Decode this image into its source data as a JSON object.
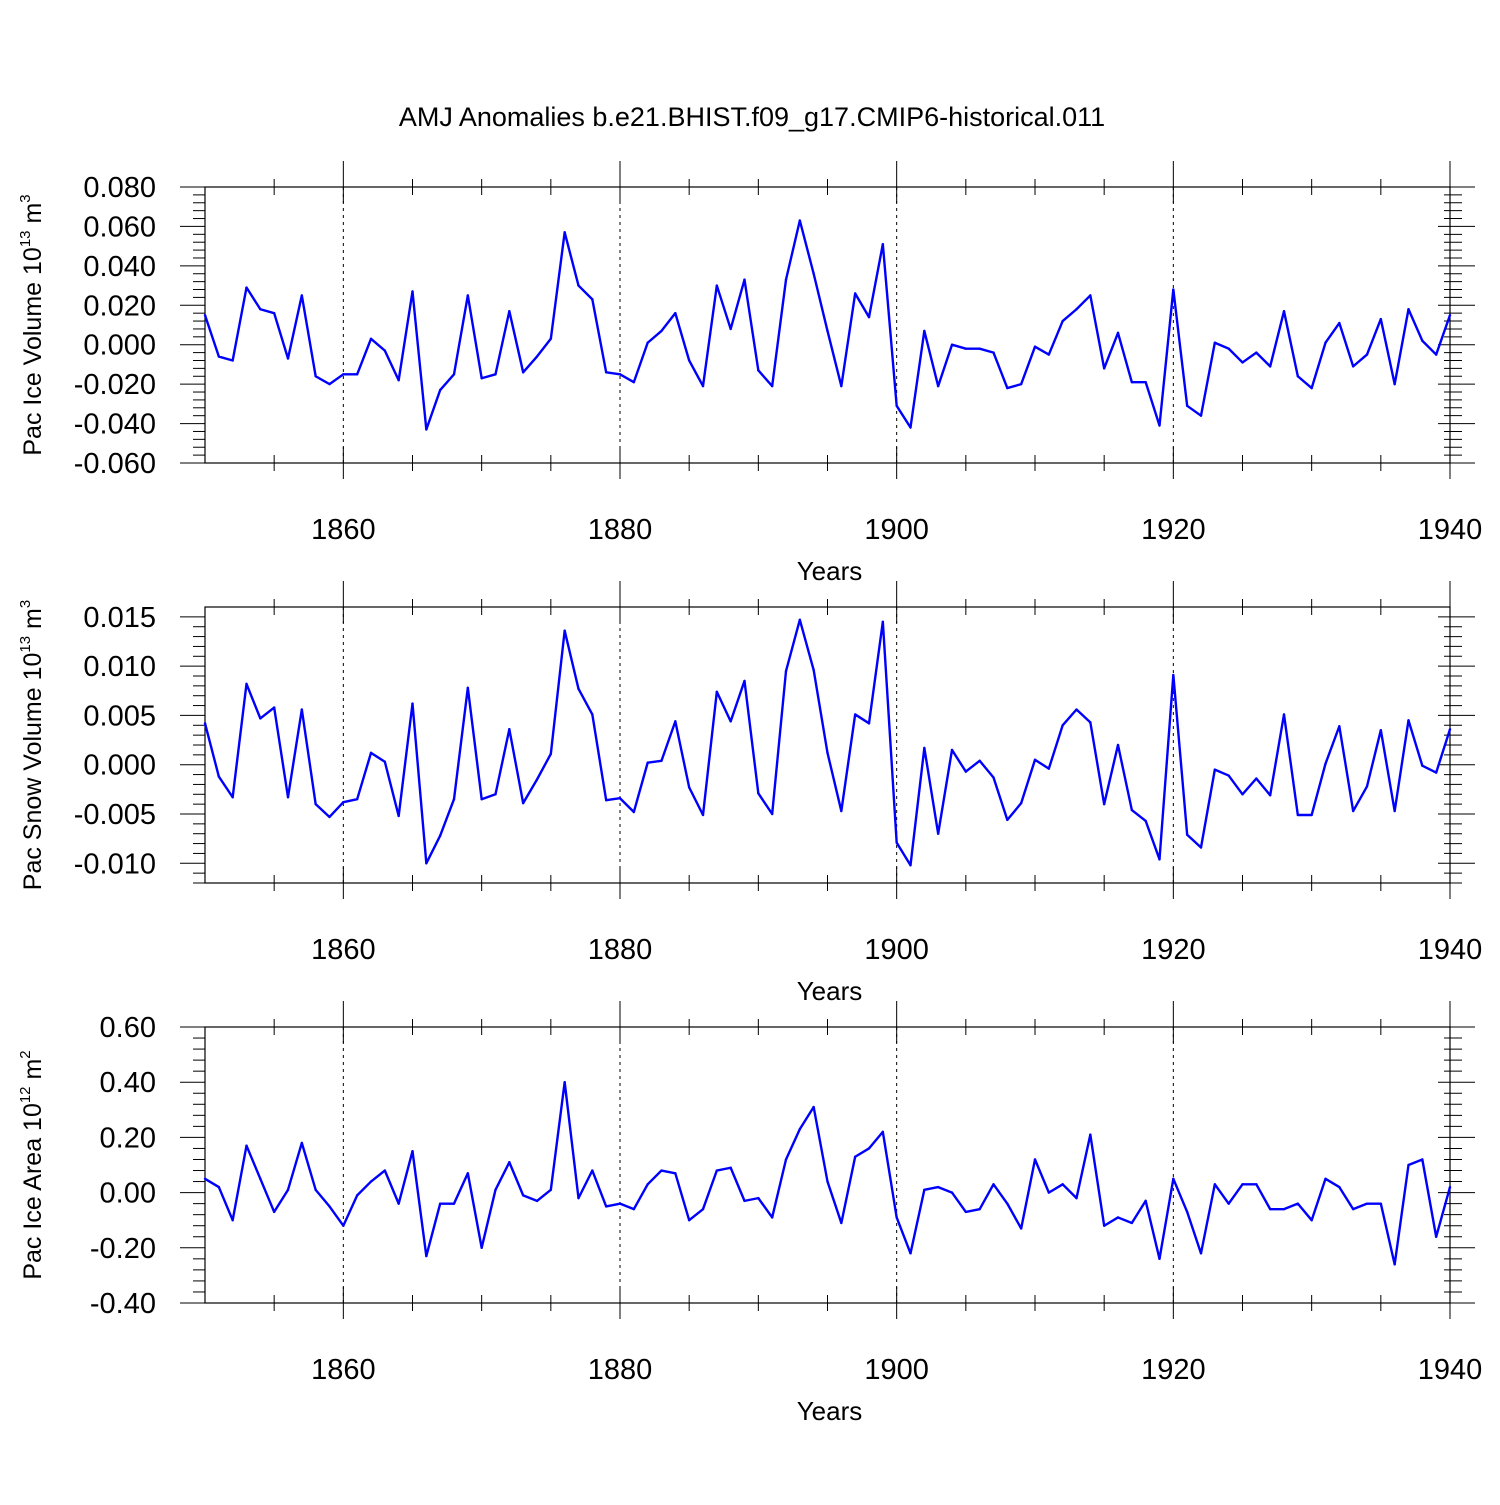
{
  "title": "AMJ Anomalies b.e21.BHIST.f09_g17.CMIP6-historical.011",
  "colors": {
    "series": "#0000ff",
    "axis": "#000000",
    "background": "#ffffff"
  },
  "chart_data": [
    {
      "type": "line",
      "title": "AMJ Anomalies b.e21.BHIST.f09_g17.CMIP6-historical.011",
      "xlabel": "Years",
      "ylabel": {
        "text": "Pac Ice Volume 10",
        "exponent": "13",
        "unit": "m",
        "unit_exponent": "3"
      },
      "xlim": [
        1850,
        1940
      ],
      "ylim": [
        -0.06,
        0.08
      ],
      "yticks": [
        -0.06,
        -0.04,
        -0.02,
        0.0,
        0.02,
        0.04,
        0.06,
        0.08
      ],
      "ytick_labels": [
        "-0.060",
        "-0.040",
        "-0.020",
        "0.000",
        "0.020",
        "0.040",
        "0.060",
        "0.080"
      ],
      "xticks": [
        1860,
        1880,
        1900,
        1920,
        1940
      ],
      "xtick_labels": [
        "1860",
        "1880",
        "1900",
        "1920",
        "1940"
      ],
      "grid": "vertical dashed at major x ticks",
      "series": [
        {
          "name": "Pac Ice Volume",
          "x_start": 1850,
          "values": [
            0.015,
            -0.006,
            -0.008,
            0.029,
            0.018,
            0.016,
            -0.007,
            0.025,
            -0.016,
            -0.02,
            -0.015,
            -0.015,
            0.003,
            -0.003,
            -0.018,
            0.027,
            -0.043,
            -0.023,
            -0.015,
            0.025,
            -0.017,
            -0.015,
            0.017,
            -0.014,
            -0.006,
            0.003,
            0.057,
            0.03,
            0.023,
            -0.014,
            -0.015,
            -0.019,
            0.001,
            0.007,
            0.016,
            -0.008,
            -0.021,
            0.03,
            0.008,
            0.033,
            -0.013,
            -0.021,
            0.033,
            0.063,
            0.036,
            0.007,
            -0.021,
            0.026,
            0.014,
            0.051,
            -0.031,
            -0.042,
            0.007,
            -0.021,
            0.0,
            -0.002,
            -0.002,
            -0.004,
            -0.022,
            -0.02,
            -0.001,
            -0.005,
            0.012,
            0.018,
            0.025,
            -0.012,
            0.006,
            -0.019,
            -0.019,
            -0.041,
            0.028,
            -0.031,
            -0.036,
            0.001,
            -0.002,
            -0.009,
            -0.004,
            -0.011,
            0.017,
            -0.016,
            -0.022,
            0.001,
            0.011,
            -0.011,
            -0.005,
            0.013,
            -0.02,
            0.018,
            0.002,
            -0.005,
            0.015
          ]
        }
      ]
    },
    {
      "type": "line",
      "xlabel": "Years",
      "ylabel": {
        "text": "Pac Snow Volume 10",
        "exponent": "13",
        "unit": "m",
        "unit_exponent": "3"
      },
      "xlim": [
        1850,
        1940
      ],
      "ylim": [
        -0.012,
        0.016
      ],
      "yticks": [
        -0.01,
        -0.005,
        0.0,
        0.005,
        0.01,
        0.015
      ],
      "ytick_labels": [
        "-0.010",
        "-0.005",
        "0.000",
        "0.005",
        "0.010",
        "0.015"
      ],
      "xticks": [
        1860,
        1880,
        1900,
        1920,
        1940
      ],
      "xtick_labels": [
        "1860",
        "1880",
        "1900",
        "1920",
        "1940"
      ],
      "grid": "vertical dashed at major x ticks",
      "series": [
        {
          "name": "Pac Snow Volume",
          "x_start": 1850,
          "values": [
            0.0042,
            -0.0012,
            -0.0033,
            0.0082,
            0.0047,
            0.0058,
            -0.0033,
            0.0056,
            -0.004,
            -0.0053,
            -0.0038,
            -0.0035,
            0.0012,
            0.0003,
            -0.0052,
            0.0062,
            -0.01,
            -0.0072,
            -0.0035,
            0.0078,
            -0.0035,
            -0.003,
            0.0036,
            -0.0039,
            -0.0015,
            0.0011,
            0.0136,
            0.0077,
            0.0051,
            -0.0036,
            -0.0034,
            -0.0048,
            0.0002,
            0.0004,
            0.0044,
            -0.0023,
            -0.0051,
            0.0074,
            0.0044,
            0.0085,
            -0.0029,
            -0.005,
            0.0095,
            0.0147,
            0.0096,
            0.0012,
            -0.0047,
            0.0051,
            0.0042,
            0.0145,
            -0.0079,
            -0.0102,
            0.0017,
            -0.007,
            0.0015,
            -0.0007,
            0.0004,
            -0.0013,
            -0.0056,
            -0.0039,
            0.0005,
            -0.0004,
            0.004,
            0.0056,
            0.0043,
            -0.004,
            0.002,
            -0.0046,
            -0.0057,
            -0.0096,
            0.0091,
            -0.0071,
            -0.0084,
            -0.0005,
            -0.0011,
            -0.003,
            -0.0014,
            -0.0031,
            0.0051,
            -0.0051,
            -0.0051,
            0.0001,
            0.0039,
            -0.0047,
            -0.0022,
            0.0035,
            -0.0047,
            0.0045,
            -0.0001,
            -0.0008,
            0.0036
          ]
        }
      ]
    },
    {
      "type": "line",
      "xlabel": "Years",
      "ylabel": {
        "text": "Pac Ice Area 10",
        "exponent": "12",
        "unit": "m",
        "unit_exponent": "2"
      },
      "xlim": [
        1850,
        1940
      ],
      "ylim": [
        -0.4,
        0.6
      ],
      "yticks": [
        -0.4,
        -0.2,
        0.0,
        0.2,
        0.4,
        0.6
      ],
      "ytick_labels": [
        "-0.40",
        "-0.20",
        "0.00",
        "0.20",
        "0.40",
        "0.60"
      ],
      "xticks": [
        1860,
        1880,
        1900,
        1920,
        1940
      ],
      "xtick_labels": [
        "1860",
        "1880",
        "1900",
        "1920",
        "1940"
      ],
      "grid": "vertical dashed at major x ticks",
      "series": [
        {
          "name": "Pac Ice Area",
          "x_start": 1850,
          "values": [
            0.05,
            0.02,
            -0.1,
            0.17,
            0.05,
            -0.07,
            0.01,
            0.18,
            0.01,
            -0.05,
            -0.12,
            -0.01,
            0.04,
            0.08,
            -0.04,
            0.15,
            -0.23,
            -0.04,
            -0.04,
            0.07,
            -0.2,
            0.01,
            0.11,
            -0.01,
            -0.03,
            0.01,
            0.4,
            -0.02,
            0.08,
            -0.05,
            -0.04,
            -0.06,
            0.03,
            0.08,
            0.07,
            -0.1,
            -0.06,
            0.08,
            0.09,
            -0.03,
            -0.02,
            -0.09,
            0.12,
            0.23,
            0.31,
            0.04,
            -0.11,
            0.13,
            0.16,
            0.22,
            -0.09,
            -0.22,
            0.01,
            0.02,
            0.0,
            -0.07,
            -0.06,
            0.03,
            -0.04,
            -0.13,
            0.12,
            0.0,
            0.03,
            -0.02,
            0.21,
            -0.12,
            -0.09,
            -0.11,
            -0.03,
            -0.24,
            0.05,
            -0.07,
            -0.22,
            0.03,
            -0.04,
            0.03,
            0.03,
            -0.06,
            -0.06,
            -0.04,
            -0.1,
            0.05,
            0.02,
            -0.06,
            -0.04,
            -0.04,
            -0.26,
            0.1,
            0.12,
            -0.16,
            0.02
          ]
        }
      ]
    }
  ]
}
